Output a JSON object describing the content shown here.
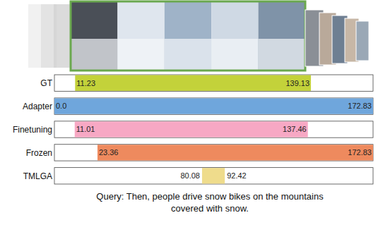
{
  "chart_data": {
    "type": "bar",
    "orientation": "horizontal",
    "categories": [
      "GT",
      "Adapter",
      "Finetuning",
      "Frozen",
      "TMLGA"
    ],
    "values": [
      [
        11.23,
        139.13
      ],
      [
        0.0,
        172.83
      ],
      [
        11.01,
        137.46
      ],
      [
        23.36,
        172.83
      ],
      [
        80.08,
        92.42
      ]
    ],
    "value_labels": [
      [
        "11.23",
        "139.13"
      ],
      [
        "0.0",
        "172.83"
      ],
      [
        "11.01",
        "137.46"
      ],
      [
        "23.36",
        "172.83"
      ],
      [
        "80.08",
        "92.42"
      ]
    ],
    "colors": [
      "#c3d23a",
      "#6fa6dc",
      "#f7a8c4",
      "#ee8a5e",
      "#efdc8c"
    ],
    "xlim": [
      0,
      172.83
    ],
    "tick_labels": false,
    "data_labels": true,
    "annotations": [
      "Query: Then, people drive snow bikes on the mountains covered with snow."
    ]
  }
}
